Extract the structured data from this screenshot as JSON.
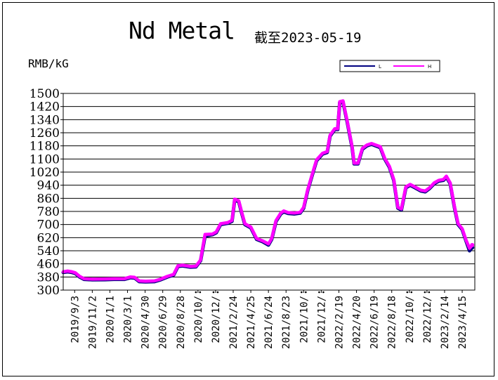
{
  "chart_data": {
    "type": "line",
    "title": "Nd Metal",
    "subtitle": "截至2023-05-19",
    "ylabel": "RMB/kG",
    "ylim": [
      300,
      1500
    ],
    "yticks": [
      300,
      380,
      460,
      540,
      620,
      700,
      780,
      860,
      940,
      1020,
      1100,
      1180,
      1260,
      1340,
      1420,
      1500
    ],
    "xlim": [
      "2019-07-26",
      "2023-05-28"
    ],
    "xticks": [
      {
        "date": "2019-09-03",
        "label": "2019/9/3"
      },
      {
        "date": "2019-11-02",
        "label": "2019/11/2"
      },
      {
        "date": "2020-01-01",
        "label": "2020/1/1"
      },
      {
        "date": "2020-03-01",
        "label": "2020/3/1"
      },
      {
        "date": "2020-04-30",
        "label": "2020/4/30"
      },
      {
        "date": "2020-06-29",
        "label": "2020/6/29"
      },
      {
        "date": "2020-08-28",
        "label": "2020/8/28"
      },
      {
        "date": "2020-10-27",
        "label": "2020/10/"
      },
      {
        "date": "2020-12-26",
        "label": "2020/12/"
      },
      {
        "date": "2021-02-24",
        "label": "2021/2/24"
      },
      {
        "date": "2021-04-25",
        "label": "2021/4/25"
      },
      {
        "date": "2021-06-24",
        "label": "2021/6/24"
      },
      {
        "date": "2021-08-23",
        "label": "2021/8/23"
      },
      {
        "date": "2021-10-22",
        "label": "2021/10/"
      },
      {
        "date": "2021-12-21",
        "label": "2021/12/"
      },
      {
        "date": "2022-02-19",
        "label": "2022/2/19"
      },
      {
        "date": "2022-04-20",
        "label": "2022/4/20"
      },
      {
        "date": "2022-06-19",
        "label": "2022/6/19"
      },
      {
        "date": "2022-08-18",
        "label": "2022/8/18"
      },
      {
        "date": "2022-10-17",
        "label": "2022/10/"
      },
      {
        "date": "2022-12-16",
        "label": "2022/12/"
      },
      {
        "date": "2023-02-14",
        "label": "2023/2/14"
      },
      {
        "date": "2023-04-15",
        "label": "2023/4/15"
      }
    ],
    "grid": true,
    "legend_position": "top-right",
    "series": [
      {
        "name": "L",
        "color": "#000080",
        "points": [
          [
            "2019-07-26",
            408
          ],
          [
            "2019-08-10",
            412
          ],
          [
            "2019-08-25",
            408
          ],
          [
            "2019-09-05",
            402
          ],
          [
            "2019-09-20",
            380
          ],
          [
            "2019-10-05",
            366
          ],
          [
            "2019-11-02",
            363
          ],
          [
            "2019-12-15",
            364
          ],
          [
            "2020-01-15",
            366
          ],
          [
            "2020-02-20",
            366
          ],
          [
            "2020-03-10",
            376
          ],
          [
            "2020-03-25",
            374
          ],
          [
            "2020-04-10",
            352
          ],
          [
            "2020-05-01",
            350
          ],
          [
            "2020-06-01",
            352
          ],
          [
            "2020-06-20",
            362
          ],
          [
            "2020-07-15",
            380
          ],
          [
            "2020-08-05",
            392
          ],
          [
            "2020-08-20",
            445
          ],
          [
            "2020-09-05",
            448
          ],
          [
            "2020-10-01",
            440
          ],
          [
            "2020-10-20",
            442
          ],
          [
            "2020-11-05",
            480
          ],
          [
            "2020-11-20",
            630
          ],
          [
            "2020-12-15",
            638
          ],
          [
            "2020-12-28",
            650
          ],
          [
            "2021-01-12",
            700
          ],
          [
            "2021-02-05",
            708
          ],
          [
            "2021-02-20",
            720
          ],
          [
            "2021-03-01",
            850
          ],
          [
            "2021-03-15",
            840
          ],
          [
            "2021-03-25",
            770
          ],
          [
            "2021-04-05",
            700
          ],
          [
            "2021-04-25",
            680
          ],
          [
            "2021-05-15",
            610
          ],
          [
            "2021-06-05",
            595
          ],
          [
            "2021-06-24",
            575
          ],
          [
            "2021-07-05",
            610
          ],
          [
            "2021-07-20",
            720
          ],
          [
            "2021-08-05",
            765
          ],
          [
            "2021-08-15",
            778
          ],
          [
            "2021-08-30",
            768
          ],
          [
            "2021-09-20",
            765
          ],
          [
            "2021-10-10",
            770
          ],
          [
            "2021-10-22",
            800
          ],
          [
            "2021-11-05",
            910
          ],
          [
            "2021-11-20",
            1000
          ],
          [
            "2021-12-05",
            1090
          ],
          [
            "2021-12-25",
            1130
          ],
          [
            "2022-01-10",
            1140
          ],
          [
            "2022-01-20",
            1240
          ],
          [
            "2022-02-05",
            1280
          ],
          [
            "2022-02-15",
            1280
          ],
          [
            "2022-02-22",
            1445
          ],
          [
            "2022-03-05",
            1450
          ],
          [
            "2022-03-20",
            1320
          ],
          [
            "2022-04-05",
            1170
          ],
          [
            "2022-04-12",
            1070
          ],
          [
            "2022-04-25",
            1070
          ],
          [
            "2022-05-10",
            1160
          ],
          [
            "2022-05-25",
            1180
          ],
          [
            "2022-06-10",
            1190
          ],
          [
            "2022-06-25",
            1180
          ],
          [
            "2022-07-10",
            1170
          ],
          [
            "2022-07-25",
            1100
          ],
          [
            "2022-08-10",
            1050
          ],
          [
            "2022-08-25",
            970
          ],
          [
            "2022-09-08",
            800
          ],
          [
            "2022-09-20",
            790
          ],
          [
            "2022-10-05",
            925
          ],
          [
            "2022-10-20",
            940
          ],
          [
            "2022-11-05",
            925
          ],
          [
            "2022-11-25",
            905
          ],
          [
            "2022-12-10",
            900
          ],
          [
            "2022-12-25",
            920
          ],
          [
            "2023-01-10",
            950
          ],
          [
            "2023-01-25",
            965
          ],
          [
            "2023-02-10",
            970
          ],
          [
            "2023-02-20",
            990
          ],
          [
            "2023-03-05",
            950
          ],
          [
            "2023-03-20",
            800
          ],
          [
            "2023-04-01",
            700
          ],
          [
            "2023-04-15",
            670
          ],
          [
            "2023-04-28",
            600
          ],
          [
            "2023-05-10",
            540
          ],
          [
            "2023-05-19",
            560
          ]
        ]
      },
      {
        "name": "H",
        "color": "#ff00ff",
        "points": [
          [
            "2019-07-26",
            412
          ],
          [
            "2019-08-10",
            416
          ],
          [
            "2019-08-25",
            412
          ],
          [
            "2019-09-05",
            406
          ],
          [
            "2019-09-20",
            384
          ],
          [
            "2019-10-05",
            370
          ],
          [
            "2019-11-02",
            367
          ],
          [
            "2019-12-15",
            368
          ],
          [
            "2020-01-15",
            370
          ],
          [
            "2020-02-20",
            370
          ],
          [
            "2020-03-10",
            380
          ],
          [
            "2020-03-25",
            378
          ],
          [
            "2020-04-10",
            356
          ],
          [
            "2020-05-01",
            354
          ],
          [
            "2020-06-01",
            356
          ],
          [
            "2020-06-20",
            366
          ],
          [
            "2020-07-15",
            384
          ],
          [
            "2020-08-05",
            396
          ],
          [
            "2020-08-20",
            449
          ],
          [
            "2020-09-05",
            452
          ],
          [
            "2020-10-01",
            444
          ],
          [
            "2020-10-20",
            446
          ],
          [
            "2020-11-05",
            484
          ],
          [
            "2020-11-20",
            640
          ],
          [
            "2020-12-15",
            642
          ],
          [
            "2020-12-28",
            655
          ],
          [
            "2021-01-12",
            705
          ],
          [
            "2021-02-05",
            712
          ],
          [
            "2021-02-20",
            725
          ],
          [
            "2021-03-01",
            855
          ],
          [
            "2021-03-15",
            845
          ],
          [
            "2021-03-25",
            775
          ],
          [
            "2021-04-05",
            705
          ],
          [
            "2021-04-25",
            685
          ],
          [
            "2021-05-15",
            615
          ],
          [
            "2021-06-05",
            600
          ],
          [
            "2021-06-24",
            582
          ],
          [
            "2021-07-05",
            615
          ],
          [
            "2021-07-20",
            725
          ],
          [
            "2021-08-05",
            770
          ],
          [
            "2021-08-15",
            783
          ],
          [
            "2021-08-30",
            773
          ],
          [
            "2021-09-20",
            770
          ],
          [
            "2021-10-10",
            775
          ],
          [
            "2021-10-22",
            805
          ],
          [
            "2021-11-05",
            915
          ],
          [
            "2021-11-20",
            1005
          ],
          [
            "2021-12-05",
            1095
          ],
          [
            "2021-12-25",
            1135
          ],
          [
            "2022-01-10",
            1145
          ],
          [
            "2022-01-20",
            1245
          ],
          [
            "2022-02-05",
            1285
          ],
          [
            "2022-02-15",
            1285
          ],
          [
            "2022-02-22",
            1450
          ],
          [
            "2022-03-05",
            1455
          ],
          [
            "2022-03-20",
            1325
          ],
          [
            "2022-04-05",
            1175
          ],
          [
            "2022-04-12",
            1075
          ],
          [
            "2022-04-25",
            1075
          ],
          [
            "2022-05-10",
            1165
          ],
          [
            "2022-05-25",
            1185
          ],
          [
            "2022-06-10",
            1195
          ],
          [
            "2022-06-25",
            1185
          ],
          [
            "2022-07-10",
            1175
          ],
          [
            "2022-07-25",
            1105
          ],
          [
            "2022-08-10",
            1055
          ],
          [
            "2022-08-25",
            975
          ],
          [
            "2022-09-08",
            805
          ],
          [
            "2022-09-20",
            795
          ],
          [
            "2022-10-05",
            930
          ],
          [
            "2022-10-20",
            945
          ],
          [
            "2022-11-05",
            930
          ],
          [
            "2022-11-25",
            910
          ],
          [
            "2022-12-10",
            905
          ],
          [
            "2022-12-25",
            925
          ],
          [
            "2023-01-10",
            955
          ],
          [
            "2023-01-25",
            970
          ],
          [
            "2023-02-10",
            975
          ],
          [
            "2023-02-20",
            995
          ],
          [
            "2023-03-05",
            955
          ],
          [
            "2023-03-20",
            805
          ],
          [
            "2023-04-01",
            705
          ],
          [
            "2023-04-15",
            675
          ],
          [
            "2023-04-28",
            605
          ],
          [
            "2023-05-10",
            555
          ],
          [
            "2023-05-19",
            575
          ]
        ]
      }
    ]
  }
}
